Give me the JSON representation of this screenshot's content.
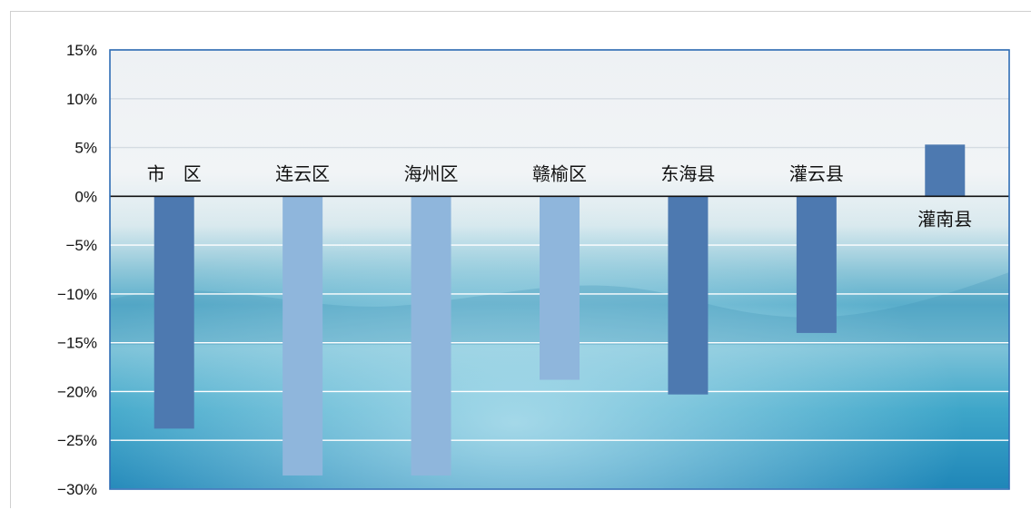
{
  "chart_data": {
    "type": "bar",
    "categories": [
      "市　区",
      "连云区",
      "海州区",
      "赣榆区",
      "东海县",
      "灌云县",
      "灌南县"
    ],
    "values": [
      -23.8,
      -28.6,
      -28.6,
      -18.8,
      -20.3,
      -14.0,
      5.3
    ],
    "bar_colors": [
      "#4d79b0",
      "#8fb6dc",
      "#8fb6dc",
      "#8fb6dc",
      "#4d79b0",
      "#4d79b0",
      "#4d79b0"
    ],
    "yticks": [
      "15%",
      "10%",
      "5%",
      "0%",
      "−5%",
      "−10%",
      "−15%",
      "−20%",
      "−25%",
      "−30%"
    ],
    "ylim": [
      -30,
      15
    ],
    "title": "",
    "xlabel": "",
    "ylabel": "",
    "grid": true,
    "legend": "none"
  }
}
